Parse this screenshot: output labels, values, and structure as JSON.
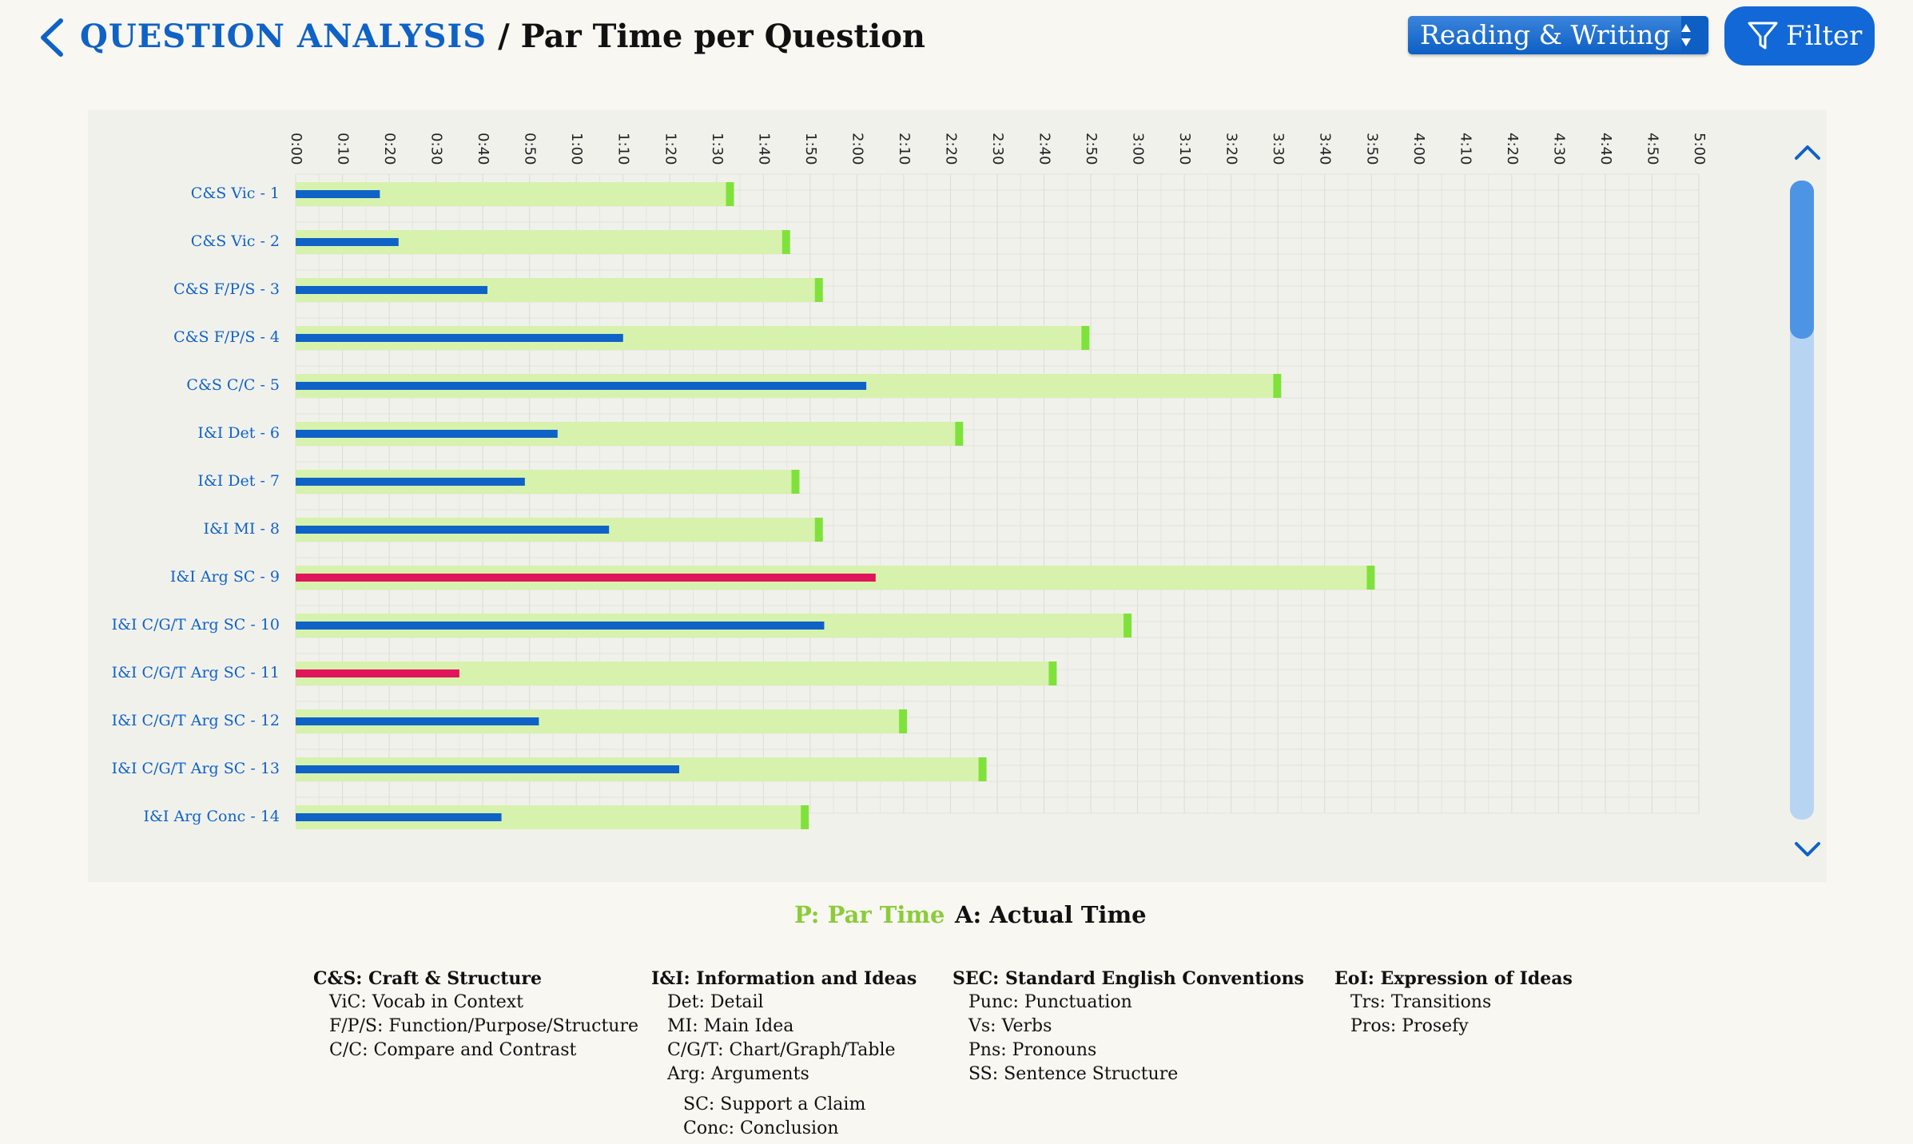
{
  "header": {
    "section_title": "QUESTION ANALYSIS",
    "separator": "/",
    "page_title": "Par Time per Question",
    "subject_select": "Reading & Writing",
    "filter_label": "Filter"
  },
  "colors": {
    "brand_blue": "#0f62c6",
    "actual_on_time": "#0f62c6",
    "actual_flag": "#e0155a",
    "par_bar": "#d6f2ad",
    "par_marker": "#7fe23a",
    "legend_par": "#8ccb3a"
  },
  "legend": {
    "par": "P: Par Time",
    "actual": "A: Actual Time"
  },
  "chart_data": {
    "type": "bar",
    "orientation": "horizontal",
    "title": "Par Time per Question",
    "x_unit": "seconds",
    "xlim": [
      0,
      300
    ],
    "x_tick_labels": [
      "0:00",
      "0:10",
      "0:20",
      "0:30",
      "0:40",
      "0:50",
      "1:00",
      "1:10",
      "1:20",
      "1:30",
      "1:40",
      "1:50",
      "2:00",
      "2:10",
      "2:20",
      "2:30",
      "2:40",
      "2:50",
      "3:00",
      "3:10",
      "3:20",
      "3:30",
      "3:40",
      "3:50",
      "4:00",
      "4:10",
      "4:20",
      "4:30",
      "4:40",
      "4:50",
      "5:00"
    ],
    "categories": [
      "C&S Vic - 1",
      "C&S Vic - 2",
      "C&S F/P/S - 3",
      "C&S F/P/S - 4",
      "C&S C/C - 5",
      "I&I Det - 6",
      "I&I Det - 7",
      "I&I MI - 8",
      "I&I Arg SC - 9",
      "I&I C/G/T Arg SC - 10",
      "I&I C/G/T Arg SC - 11",
      "I&I C/G/T Arg SC - 12",
      "I&I C/G/T Arg SC - 13",
      "I&I Arg Conc - 14"
    ],
    "series": [
      {
        "name": "Par Time",
        "values": [
          92,
          104,
          111,
          168,
          209,
          141,
          106,
          111,
          229,
          177,
          161,
          129,
          146,
          108
        ]
      },
      {
        "name": "Actual Time",
        "values": [
          18,
          22,
          41,
          70,
          122,
          56,
          49,
          67,
          124,
          113,
          35,
          52,
          82,
          44
        ],
        "flagged": [
          false,
          false,
          false,
          false,
          false,
          false,
          false,
          false,
          true,
          false,
          true,
          false,
          false,
          false
        ]
      }
    ]
  },
  "abbreviations": [
    {
      "heading": "C&S: Craft & Structure",
      "items": [
        "ViC: Vocab in Context",
        "F/P/S: Function/Purpose/Structure",
        "C/C: Compare and Contrast"
      ],
      "subitems": []
    },
    {
      "heading": "I&I: Information and Ideas",
      "items": [
        "Det: Detail",
        "MI: Main Idea",
        "C/G/T: Chart/Graph/Table",
        "Arg: Arguments"
      ],
      "subitems": [
        "SC: Support a Claim",
        "Conc: Conclusion"
      ]
    },
    {
      "heading": "SEC: Standard English Conventions",
      "items": [
        "Punc: Punctuation",
        "Vs: Verbs",
        "Pns: Pronouns",
        "SS: Sentence Structure"
      ],
      "subitems": []
    },
    {
      "heading": "EoI: Expression of Ideas",
      "items": [
        "Trs: Transitions",
        "Pros: Prosefy"
      ],
      "subitems": []
    }
  ]
}
